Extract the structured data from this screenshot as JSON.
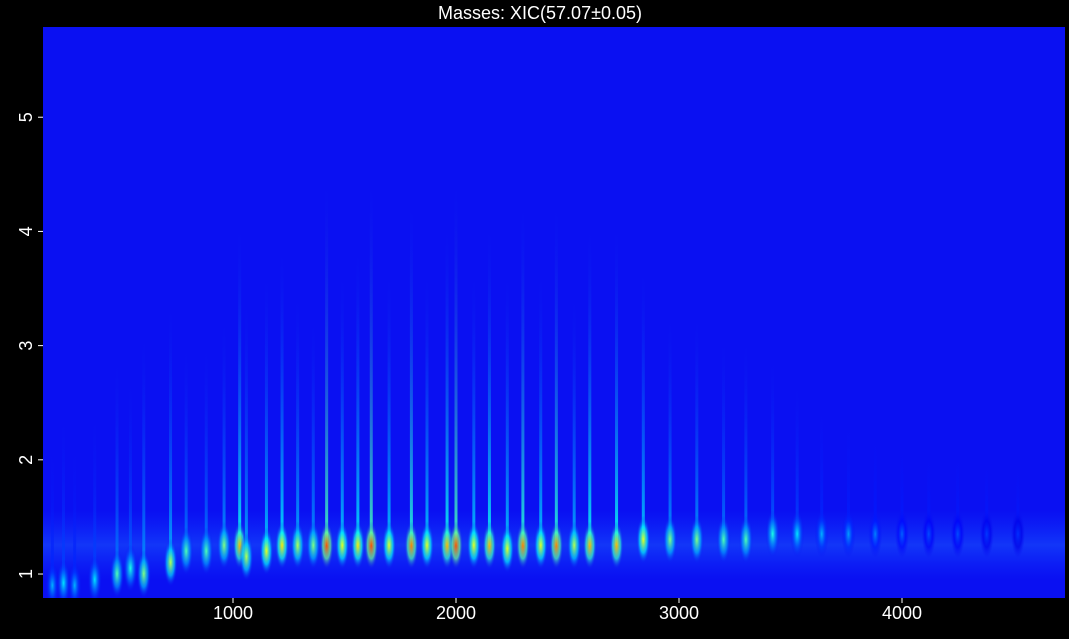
{
  "chart_data": {
    "type": "heatmap",
    "title": "Masses:  XIC(57.07±0.05)",
    "x": [
      190,
      240,
      290,
      380,
      480,
      540,
      600,
      720,
      790,
      880,
      960,
      1030,
      1060,
      1150,
      1220,
      1290,
      1360,
      1420,
      1490,
      1560,
      1620,
      1700,
      1800,
      1870,
      1960,
      2000,
      2080,
      2150,
      2230,
      2300,
      2380,
      2450,
      2530,
      2600,
      2720,
      2840,
      2960,
      3080,
      3200,
      3300,
      3420,
      3530,
      3640,
      3760,
      3880,
      4000,
      4120,
      4250,
      4380,
      4520
    ],
    "y": [
      0.9,
      0.92,
      0.9,
      0.95,
      1.0,
      1.05,
      1.0,
      1.1,
      1.2,
      1.2,
      1.25,
      1.25,
      1.15,
      1.2,
      1.25,
      1.25,
      1.25,
      1.25,
      1.25,
      1.25,
      1.25,
      1.25,
      1.25,
      1.25,
      1.25,
      1.25,
      1.25,
      1.25,
      1.22,
      1.25,
      1.25,
      1.25,
      1.25,
      1.25,
      1.25,
      1.3,
      1.3,
      1.3,
      1.3,
      1.3,
      1.35,
      1.35,
      1.35,
      1.35,
      1.35,
      1.35,
      1.35,
      1.35,
      1.35,
      1.35
    ],
    "intensity": [
      0.3,
      0.35,
      0.3,
      0.35,
      0.45,
      0.4,
      0.5,
      0.55,
      0.45,
      0.45,
      0.5,
      0.7,
      0.55,
      0.6,
      0.65,
      0.55,
      0.5,
      0.8,
      0.6,
      0.65,
      0.8,
      0.6,
      0.75,
      0.6,
      0.7,
      0.8,
      0.6,
      0.7,
      0.6,
      0.75,
      0.6,
      0.75,
      0.55,
      0.7,
      0.7,
      0.6,
      0.5,
      0.5,
      0.45,
      0.45,
      0.4,
      0.35,
      0.3,
      0.28,
      0.25,
      0.22,
      0.2,
      0.2,
      0.18,
      0.17
    ],
    "xlim": [
      148,
      4731
    ],
    "ylim": [
      0.79,
      5.79
    ],
    "xticks": [
      1000,
      2000,
      3000,
      4000
    ],
    "yticks": [
      1,
      2,
      3,
      4,
      5
    ],
    "colormap": "jet"
  }
}
